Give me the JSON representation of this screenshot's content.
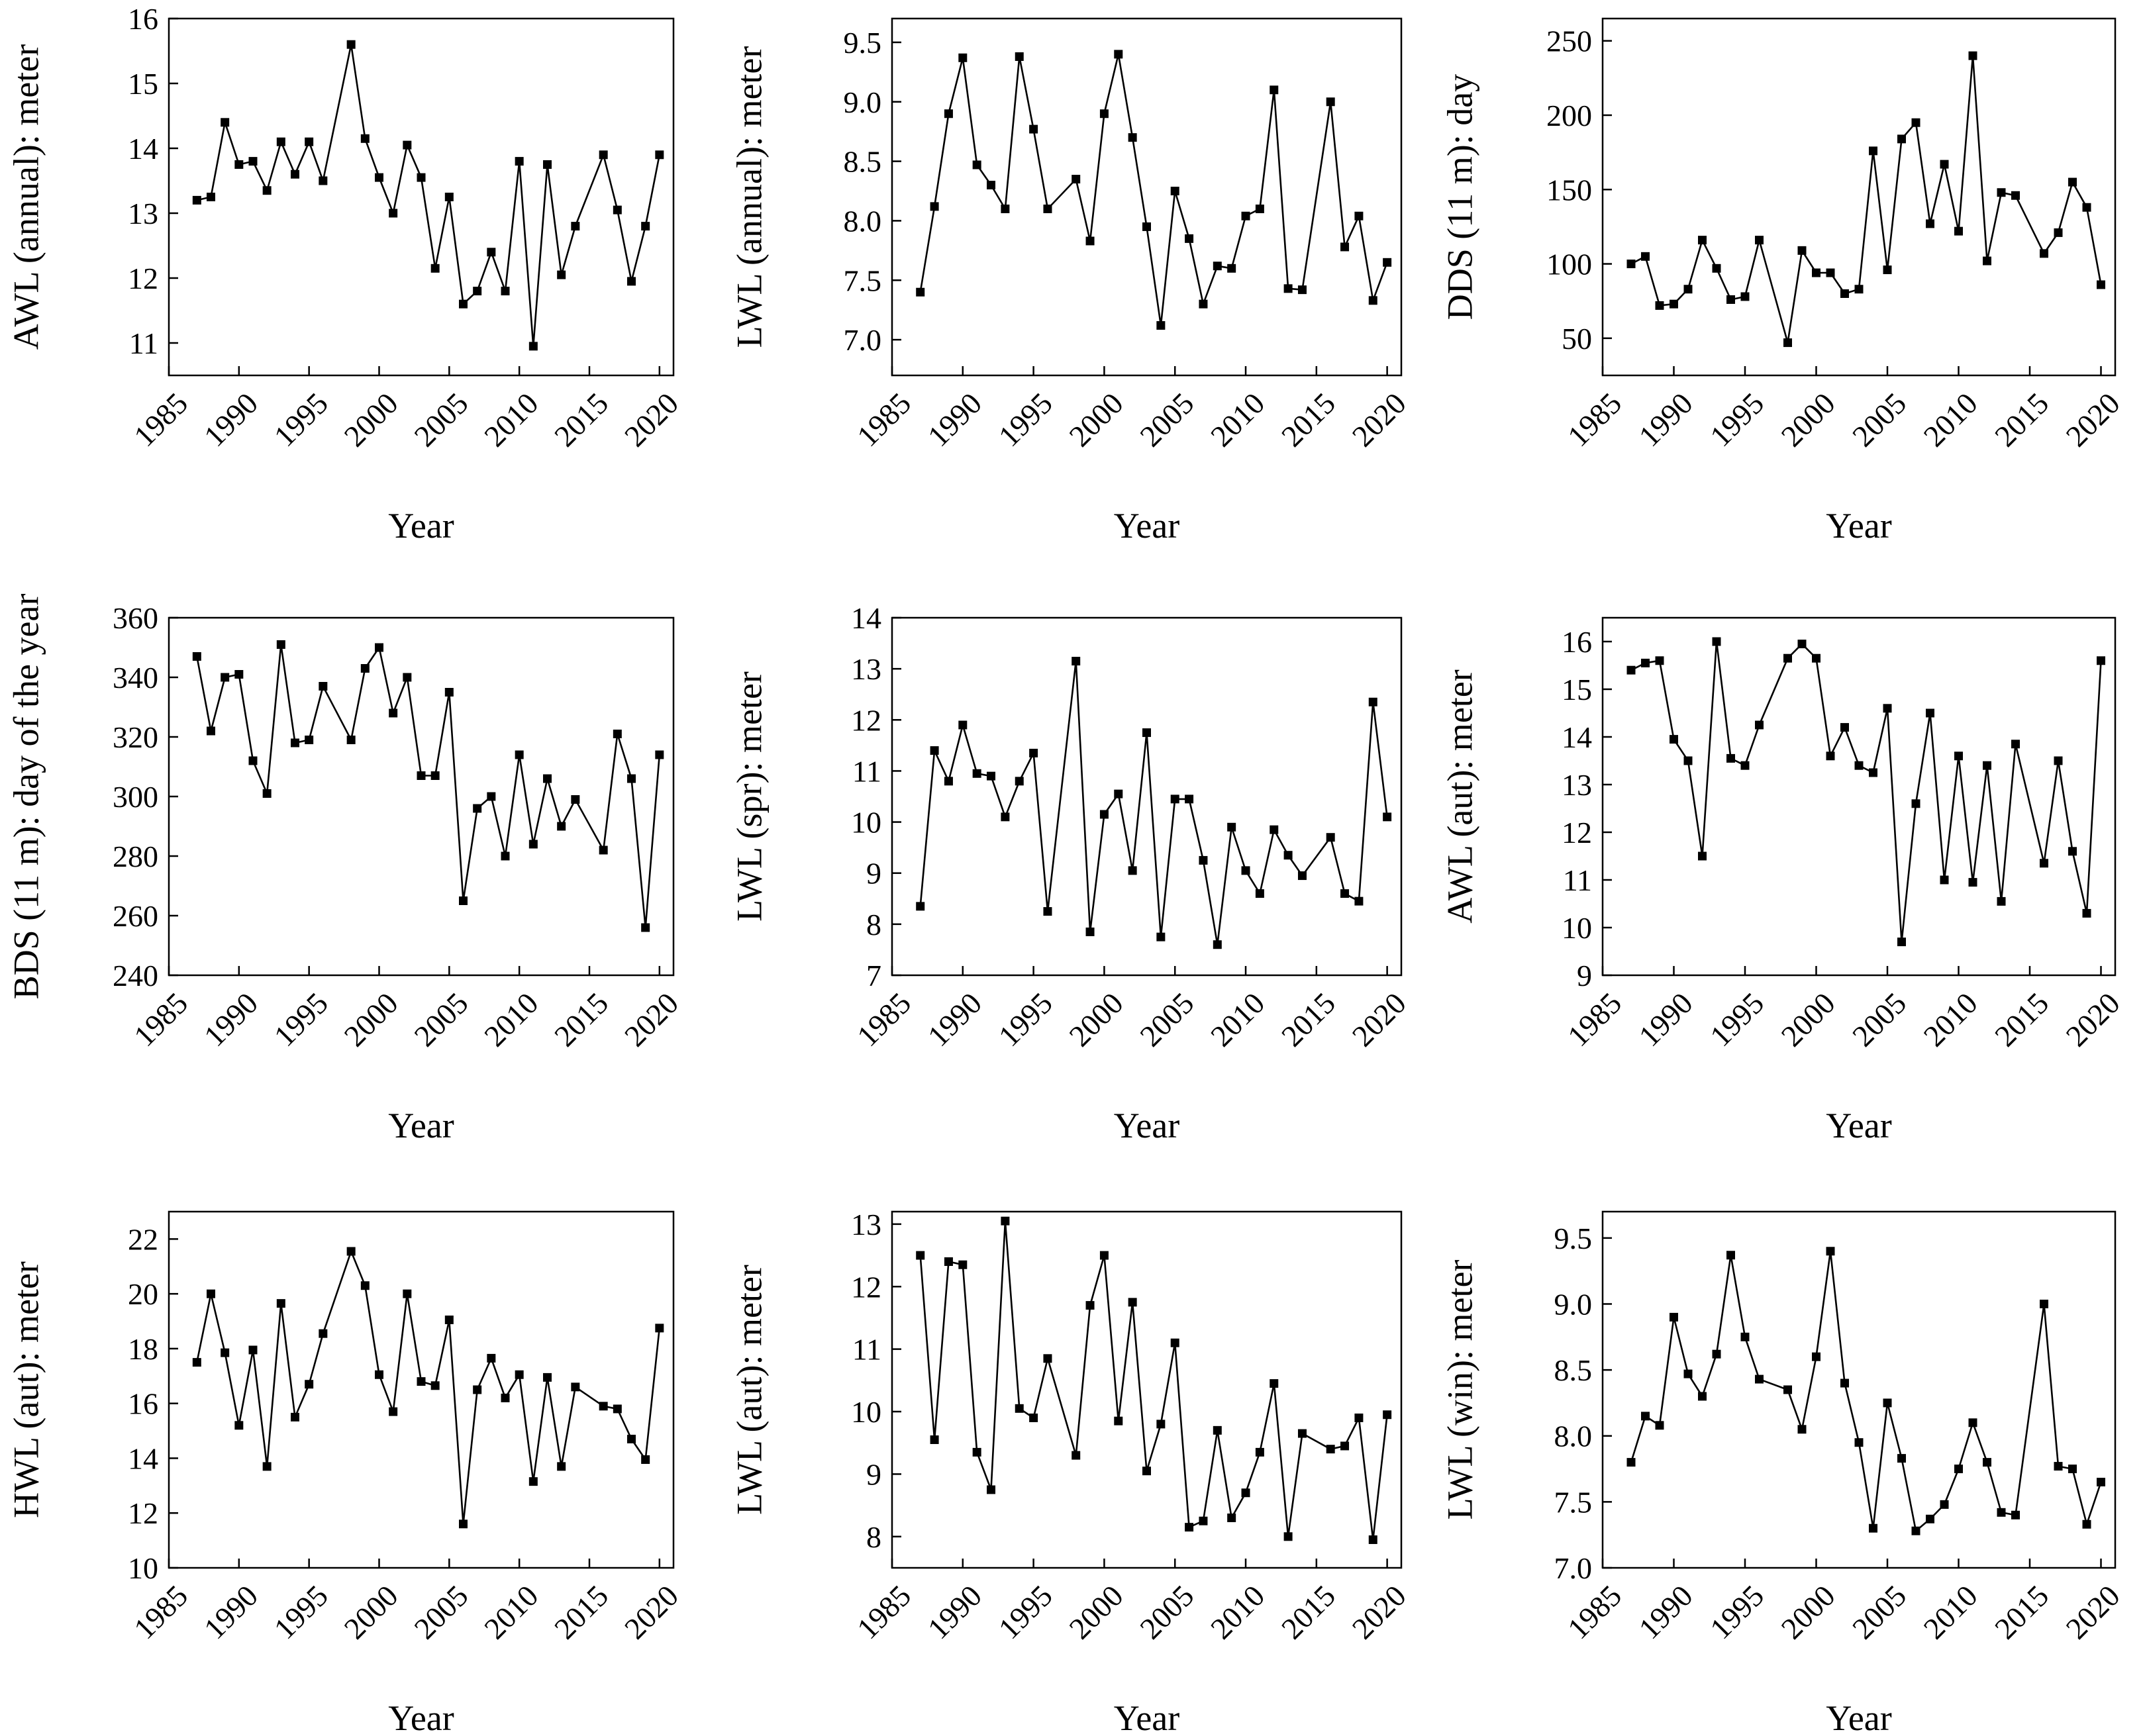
{
  "chart_data": [
    {
      "type": "line",
      "ylabel": "AWL (annual): meter",
      "xlabel": "Year",
      "xlim": [
        1985,
        2021
      ],
      "ylim": [
        10.5,
        16
      ],
      "xticks": [
        1985,
        1990,
        1995,
        2000,
        2005,
        2010,
        2015,
        2020
      ],
      "yticks": [
        11,
        12,
        13,
        14,
        15,
        16
      ],
      "x": [
        1987,
        1988,
        1989,
        1990,
        1991,
        1992,
        1993,
        1994,
        1995,
        1996,
        1998,
        1999,
        2000,
        2001,
        2002,
        2003,
        2004,
        2005,
        2006,
        2007,
        2008,
        2009,
        2010,
        2011,
        2012,
        2013,
        2014,
        2016,
        2017,
        2018,
        2019,
        2020
      ],
      "y": [
        13.2,
        13.25,
        14.4,
        13.75,
        13.8,
        13.35,
        14.1,
        13.6,
        14.1,
        13.5,
        15.6,
        14.15,
        13.55,
        13.0,
        14.05,
        13.55,
        12.15,
        13.25,
        11.6,
        11.8,
        12.4,
        11.8,
        13.8,
        10.95,
        13.75,
        12.05,
        12.8,
        13.9,
        13.05,
        11.95,
        12.8,
        13.9
      ]
    },
    {
      "type": "line",
      "ylabel": "LWL (annual): meter",
      "xlabel": "Year",
      "xlim": [
        1985,
        2021
      ],
      "ylim": [
        6.7,
        9.7
      ],
      "xticks": [
        1985,
        1990,
        1995,
        2000,
        2005,
        2010,
        2015,
        2020
      ],
      "yticks": [
        "7.0",
        "7.5",
        "8.0",
        "8.5",
        "9.0",
        "9.5"
      ],
      "x": [
        1987,
        1988,
        1989,
        1990,
        1991,
        1992,
        1993,
        1994,
        1995,
        1996,
        1998,
        1999,
        2000,
        2001,
        2002,
        2003,
        2004,
        2005,
        2006,
        2007,
        2008,
        2009,
        2010,
        2011,
        2012,
        2013,
        2014,
        2016,
        2017,
        2018,
        2019,
        2020
      ],
      "y": [
        7.4,
        8.12,
        8.9,
        9.37,
        8.47,
        8.3,
        8.1,
        9.38,
        8.77,
        8.1,
        8.35,
        7.83,
        8.9,
        9.4,
        8.7,
        7.95,
        7.12,
        8.25,
        7.85,
        7.3,
        7.62,
        7.6,
        8.04,
        8.1,
        9.1,
        7.43,
        7.42,
        9.0,
        7.78,
        8.04,
        7.33,
        7.65
      ]
    },
    {
      "type": "line",
      "ylabel": "DDS (11 m): day",
      "xlabel": "Year",
      "xlim": [
        1985,
        2021
      ],
      "ylim": [
        25,
        265
      ],
      "xticks": [
        1985,
        1990,
        1995,
        2000,
        2005,
        2010,
        2015,
        2020
      ],
      "yticks": [
        50,
        100,
        150,
        200,
        250
      ],
      "x": [
        1987,
        1988,
        1989,
        1990,
        1991,
        1992,
        1993,
        1994,
        1995,
        1996,
        1998,
        1999,
        2000,
        2001,
        2002,
        2003,
        2004,
        2005,
        2006,
        2007,
        2008,
        2009,
        2010,
        2011,
        2012,
        2013,
        2014,
        2016,
        2017,
        2018,
        2019,
        2020
      ],
      "y": [
        100,
        105,
        72,
        73,
        83,
        116,
        97,
        76,
        78,
        116,
        47,
        109,
        94,
        94,
        80,
        83,
        176,
        96,
        184,
        195,
        127,
        167,
        122,
        240,
        102,
        148,
        146,
        107,
        121,
        155,
        138,
        86
      ]
    },
    {
      "type": "line",
      "ylabel": "BDS (11 m): day of the year",
      "xlabel": "Year",
      "xlim": [
        1985,
        2021
      ],
      "ylim": [
        240,
        360
      ],
      "xticks": [
        1985,
        1990,
        1995,
        2000,
        2005,
        2010,
        2015,
        2020
      ],
      "yticks": [
        240,
        260,
        280,
        300,
        320,
        340,
        360
      ],
      "x": [
        1987,
        1988,
        1989,
        1990,
        1991,
        1992,
        1993,
        1994,
        1995,
        1996,
        1998,
        1999,
        2000,
        2001,
        2002,
        2003,
        2004,
        2005,
        2006,
        2007,
        2008,
        2009,
        2010,
        2011,
        2012,
        2013,
        2014,
        2016,
        2017,
        2018,
        2019,
        2020
      ],
      "y": [
        347,
        322,
        340,
        341,
        312,
        301,
        351,
        318,
        319,
        337,
        319,
        343,
        350,
        328,
        340,
        307,
        307,
        335,
        265,
        296,
        300,
        280,
        314,
        284,
        306,
        290,
        299,
        282,
        321,
        306,
        256,
        314
      ]
    },
    {
      "type": "line",
      "ylabel": "LWL (spr): meter",
      "xlabel": "Year",
      "xlim": [
        1985,
        2021
      ],
      "ylim": [
        7,
        14
      ],
      "xticks": [
        1985,
        1990,
        1995,
        2000,
        2005,
        2010,
        2015,
        2020
      ],
      "yticks": [
        7,
        8,
        9,
        10,
        11,
        12,
        13,
        14
      ],
      "x": [
        1987,
        1988,
        1989,
        1990,
        1991,
        1992,
        1993,
        1994,
        1995,
        1996,
        1998,
        1999,
        2000,
        2001,
        2002,
        2003,
        2004,
        2005,
        2006,
        2007,
        2008,
        2009,
        2010,
        2011,
        2012,
        2013,
        2014,
        2016,
        2017,
        2018,
        2019,
        2020
      ],
      "y": [
        8.35,
        11.4,
        10.8,
        11.9,
        10.95,
        10.9,
        10.1,
        10.8,
        11.35,
        8.25,
        13.15,
        7.85,
        10.15,
        10.55,
        9.05,
        11.75,
        7.75,
        10.45,
        10.45,
        9.25,
        7.6,
        9.9,
        9.05,
        8.6,
        9.85,
        9.35,
        8.95,
        9.7,
        8.6,
        8.45,
        12.35,
        10.1
      ]
    },
    {
      "type": "line",
      "ylabel": "AWL (aut): meter",
      "xlabel": "Year",
      "xlim": [
        1985,
        2021
      ],
      "ylim": [
        9,
        16.5
      ],
      "xticks": [
        1985,
        1990,
        1995,
        2000,
        2005,
        2010,
        2015,
        2020
      ],
      "yticks": [
        9,
        10,
        11,
        12,
        13,
        14,
        15,
        16
      ],
      "x": [
        1987,
        1988,
        1989,
        1990,
        1991,
        1992,
        1993,
        1994,
        1995,
        1996,
        1998,
        1999,
        2000,
        2001,
        2002,
        2003,
        2004,
        2005,
        2006,
        2007,
        2008,
        2009,
        2010,
        2011,
        2012,
        2013,
        2014,
        2016,
        2017,
        2018,
        2019,
        2020
      ],
      "y": [
        15.4,
        15.55,
        15.6,
        13.95,
        13.5,
        11.5,
        16.0,
        13.55,
        13.4,
        14.25,
        15.65,
        15.95,
        15.65,
        13.6,
        14.2,
        13.4,
        13.25,
        14.6,
        9.7,
        12.6,
        14.5,
        11.0,
        13.6,
        10.95,
        13.4,
        10.55,
        13.85,
        11.35,
        13.5,
        11.6,
        10.3,
        15.6
      ]
    },
    {
      "type": "line",
      "ylabel": "HWL (aut): meter",
      "xlabel": "Year",
      "xlim": [
        1985,
        2021
      ],
      "ylim": [
        10,
        23
      ],
      "xticks": [
        1985,
        1990,
        1995,
        2000,
        2005,
        2010,
        2015,
        2020
      ],
      "yticks": [
        10,
        12,
        14,
        16,
        18,
        20,
        22
      ],
      "x": [
        1987,
        1988,
        1989,
        1990,
        1991,
        1992,
        1993,
        1994,
        1995,
        1996,
        1998,
        1999,
        2000,
        2001,
        2002,
        2003,
        2004,
        2005,
        2006,
        2007,
        2008,
        2009,
        2010,
        2011,
        2012,
        2013,
        2014,
        2016,
        2017,
        2018,
        2019,
        2020
      ],
      "y": [
        17.5,
        20.0,
        17.85,
        15.2,
        17.95,
        13.7,
        19.65,
        15.5,
        16.7,
        18.55,
        21.55,
        20.3,
        17.05,
        15.7,
        20.0,
        16.8,
        16.65,
        19.05,
        11.6,
        16.5,
        17.65,
        16.2,
        17.05,
        13.15,
        16.95,
        13.7,
        16.6,
        15.9,
        15.8,
        14.7,
        13.95,
        18.75
      ]
    },
    {
      "type": "line",
      "ylabel": "LWL (aut): meter",
      "xlabel": "Year",
      "xlim": [
        1985,
        2021
      ],
      "ylim": [
        7.5,
        13.2
      ],
      "xticks": [
        1985,
        1990,
        1995,
        2000,
        2005,
        2010,
        2015,
        2020
      ],
      "yticks": [
        8,
        9,
        10,
        11,
        12,
        13
      ],
      "x": [
        1987,
        1988,
        1989,
        1990,
        1991,
        1992,
        1993,
        1994,
        1995,
        1996,
        1998,
        1999,
        2000,
        2001,
        2002,
        2003,
        2004,
        2005,
        2006,
        2007,
        2008,
        2009,
        2010,
        2011,
        2012,
        2013,
        2014,
        2016,
        2017,
        2018,
        2019,
        2020
      ],
      "y": [
        12.5,
        9.55,
        12.4,
        12.35,
        9.35,
        8.75,
        13.05,
        10.05,
        9.9,
        10.85,
        9.3,
        11.7,
        12.5,
        9.85,
        11.75,
        9.05,
        9.8,
        11.1,
        8.15,
        8.25,
        9.7,
        8.3,
        8.7,
        9.35,
        10.45,
        8.0,
        9.65,
        9.4,
        9.45,
        9.9,
        7.95,
        9.95
      ]
    },
    {
      "type": "line",
      "ylabel": "LWL (win): meter",
      "xlabel": "Year",
      "xlim": [
        1985,
        2021
      ],
      "ylim": [
        7.0,
        9.7
      ],
      "xticks": [
        1985,
        1990,
        1995,
        2000,
        2005,
        2010,
        2015,
        2020
      ],
      "yticks": [
        "7.0",
        "7.5",
        "8.0",
        "8.5",
        "9.0",
        "9.5"
      ],
      "x": [
        1987,
        1988,
        1989,
        1990,
        1991,
        1992,
        1993,
        1994,
        1995,
        1996,
        1998,
        1999,
        2000,
        2001,
        2002,
        2003,
        2004,
        2005,
        2006,
        2007,
        2008,
        2009,
        2010,
        2011,
        2012,
        2013,
        2014,
        2016,
        2017,
        2018,
        2019,
        2020
      ],
      "y": [
        7.8,
        8.15,
        8.08,
        8.9,
        8.47,
        8.3,
        8.62,
        9.37,
        8.75,
        8.43,
        8.35,
        8.05,
        8.6,
        9.4,
        8.4,
        7.95,
        7.3,
        8.25,
        7.83,
        7.28,
        7.37,
        7.48,
        7.75,
        8.1,
        7.8,
        7.42,
        7.4,
        9.0,
        7.77,
        7.75,
        7.33,
        7.65
      ]
    }
  ]
}
